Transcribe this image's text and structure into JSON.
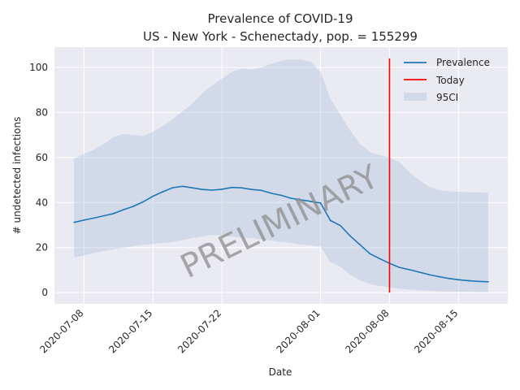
{
  "chart_data": {
    "type": "line",
    "title": "Prevalence of COVID-19",
    "subtitle": "US - New York - Schenectady, pop. = 155299",
    "xlabel": "Date",
    "ylabel": "# undetected infections",
    "xlim": [
      "2020-07-05",
      "2020-08-20"
    ],
    "ylim": [
      -5,
      109
    ],
    "grid": true,
    "legend_position": "top-right",
    "xticks": [
      "2020-07-08",
      "2020-07-15",
      "2020-07-22",
      "2020-08-01",
      "2020-08-08",
      "2020-08-15"
    ],
    "yticks": [
      0,
      20,
      40,
      60,
      80,
      100
    ],
    "watermark": "PRELIMINARY",
    "x": [
      "2020-07-07",
      "2020-07-08",
      "2020-07-09",
      "2020-07-10",
      "2020-07-11",
      "2020-07-12",
      "2020-07-13",
      "2020-07-14",
      "2020-07-15",
      "2020-07-16",
      "2020-07-17",
      "2020-07-18",
      "2020-07-19",
      "2020-07-20",
      "2020-07-21",
      "2020-07-22",
      "2020-07-23",
      "2020-07-24",
      "2020-07-25",
      "2020-07-26",
      "2020-07-27",
      "2020-07-28",
      "2020-07-29",
      "2020-07-30",
      "2020-07-31",
      "2020-08-01",
      "2020-08-02",
      "2020-08-03",
      "2020-08-04",
      "2020-08-05",
      "2020-08-06",
      "2020-08-07",
      "2020-08-08",
      "2020-08-09",
      "2020-08-10",
      "2020-08-11",
      "2020-08-12",
      "2020-08-13",
      "2020-08-14",
      "2020-08-15",
      "2020-08-16",
      "2020-08-17",
      "2020-08-18"
    ],
    "series": [
      {
        "name": "Prevalence",
        "color": "#1f77b4",
        "values": [
          31.2,
          32.2,
          33.1,
          34.1,
          35.1,
          36.8,
          38.3,
          40.3,
          42.8,
          44.8,
          46.6,
          47.2,
          46.5,
          45.8,
          45.5,
          45.9,
          46.7,
          46.5,
          45.8,
          45.4,
          44.1,
          43.2,
          41.9,
          41.2,
          40.5,
          39.8,
          32.0,
          29.8,
          25.2,
          21.3,
          17.3,
          15.1,
          13.0,
          11.2,
          10.2,
          9.1,
          8.0,
          7.1,
          6.3,
          5.7,
          5.3,
          5.0,
          4.8
        ]
      }
    ],
    "ci_band": {
      "name": "95CI",
      "color": "#b0c4de",
      "lower": [
        15.5,
        16.5,
        17.6,
        18.4,
        19.2,
        20.0,
        20.6,
        21.2,
        21.6,
        22.0,
        22.5,
        23.3,
        24.2,
        25.0,
        25.6,
        25.3,
        24.8,
        24.5,
        24.2,
        23.7,
        23.0,
        22.5,
        22.0,
        21.4,
        21.0,
        20.5,
        13.5,
        11.5,
        8.0,
        5.5,
        3.8,
        3.0,
        2.3,
        1.7,
        1.3,
        1.0,
        0.8,
        0.6,
        0.5,
        0.4,
        0.4,
        0.3,
        0.3
      ],
      "upper": [
        59.5,
        61.5,
        63.5,
        66.0,
        69.0,
        70.5,
        70.0,
        69.5,
        71.5,
        74.0,
        77.0,
        80.5,
        84.0,
        88.5,
        92.0,
        95.0,
        98.0,
        99.5,
        99.0,
        100.0,
        101.5,
        103.0,
        103.5,
        103.5,
        102.5,
        98.0,
        86.0,
        79.0,
        72.0,
        66.0,
        62.5,
        61.0,
        60.0,
        58.0,
        53.5,
        50.0,
        47.0,
        45.5,
        45.0,
        44.8,
        44.6,
        44.5,
        44.4
      ]
    },
    "today": {
      "name": "Today",
      "color": "#ff0000",
      "date": "2020-08-08",
      "y_range": [
        0,
        104
      ]
    },
    "legend": [
      "Prevalence",
      "Today",
      "95CI"
    ]
  }
}
